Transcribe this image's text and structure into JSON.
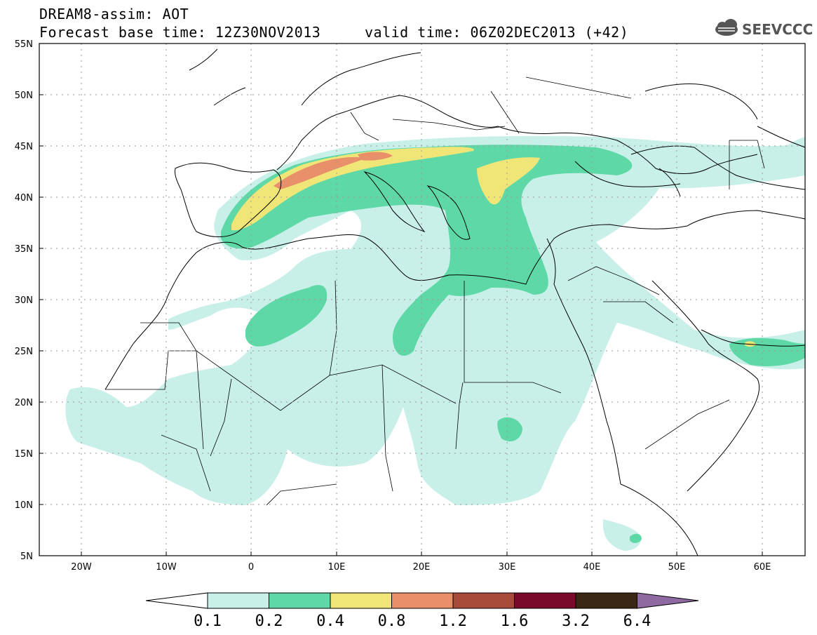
{
  "header": {
    "title_line1": "DREAM8-assim: AOT",
    "title_line2": "Forecast base time: 12Z30NOV2013     valid time: 06Z02DEC2013 (+42)"
  },
  "logo": {
    "text": "SEEVCCC",
    "icon": "cloud-icon"
  },
  "map": {
    "lon_range": [
      -25,
      65
    ],
    "lat_range": [
      5,
      55
    ],
    "lat_ticks": [
      "55N",
      "50N",
      "45N",
      "40N",
      "35N",
      "30N",
      "25N",
      "20N",
      "15N",
      "10N",
      "5N"
    ],
    "lon_ticks": [
      "20W",
      "10W",
      "0",
      "10E",
      "20E",
      "30E",
      "40E",
      "50E",
      "60E"
    ],
    "grid": "dotted"
  },
  "colorbar": {
    "labels": [
      "0.1",
      "0.2",
      "0.4",
      "0.8",
      "1.2",
      "1.6",
      "3.2",
      "6.4"
    ],
    "colors": [
      "#c8f0e8",
      "#5fd8a8",
      "#f0e678",
      "#e8906a",
      "#a84a3a",
      "#7a0a2a",
      "#3a2814",
      "#8e6aa0"
    ]
  },
  "palette": {
    "c1": "#c8f0e8",
    "c2": "#5fd8a8",
    "c3": "#f0e678",
    "c4": "#e8906a"
  }
}
